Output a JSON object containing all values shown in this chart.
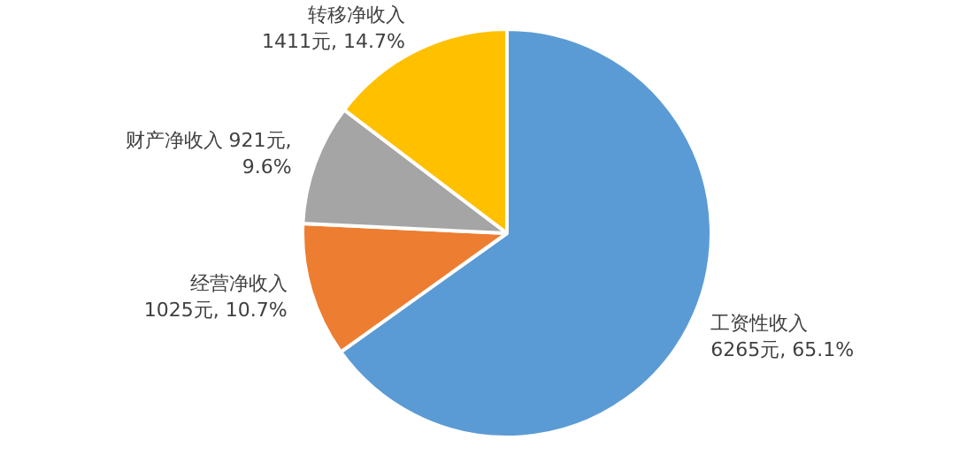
{
  "chart_data": {
    "type": "pie",
    "categories": [
      "工资性收入",
      "经营净收入",
      "财产净收入",
      "转移净收入"
    ],
    "values": [
      6265,
      1025,
      921,
      1411
    ],
    "value_labels": [
      "6265元, 65.1%",
      "1025元, 10.7%",
      "921元, 9.6%",
      "1411元, 14.7%"
    ],
    "colors": [
      "#5b9bd5",
      "#ed7d31",
      "#a5a5a5",
      "#ffc000"
    ],
    "legend": false
  }
}
